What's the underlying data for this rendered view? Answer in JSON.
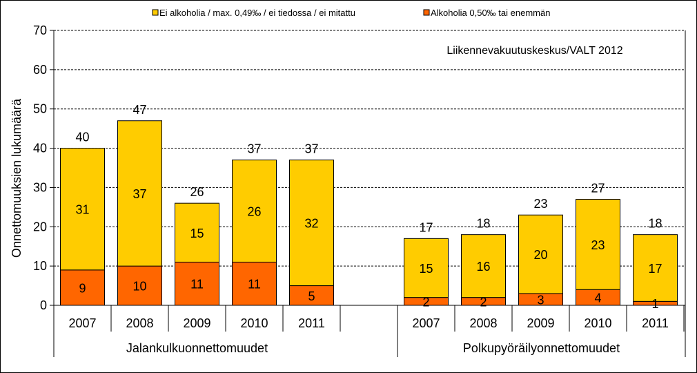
{
  "chart_data": {
    "type": "bar",
    "stacked": true,
    "ylabel": "Onnettomuuksien lukumäärä",
    "ylim": [
      0,
      70
    ],
    "yticks": [
      0,
      10,
      20,
      30,
      40,
      50,
      60,
      70
    ],
    "grid": true,
    "legend_position": "top",
    "source_note": "Liikennevakuutuskeskus/VALT 2012",
    "groups": [
      {
        "label": "Jalankulkuonnettomuudet",
        "categories": [
          "2007",
          "2008",
          "2009",
          "2010",
          "2011"
        ]
      },
      {
        "label": "Polkupyöräilyonnettomuudet",
        "categories": [
          "2007",
          "2008",
          "2009",
          "2010",
          "2011"
        ]
      }
    ],
    "series": [
      {
        "name": "Alkoholia 0,50‰ tai enemmän",
        "color": "#FF6600",
        "values": [
          [
            9,
            10,
            11,
            11,
            5
          ],
          [
            2,
            2,
            3,
            4,
            1
          ]
        ]
      },
      {
        "name": "Ei alkoholia / max. 0,49‰ / ei tiedossa / ei mitattu",
        "color": "#FFCC00",
        "values": [
          [
            31,
            37,
            15,
            26,
            32
          ],
          [
            15,
            16,
            20,
            23,
            17
          ]
        ]
      }
    ],
    "totals": [
      [
        40,
        47,
        26,
        37,
        37
      ],
      [
        17,
        18,
        23,
        27,
        18
      ]
    ]
  }
}
